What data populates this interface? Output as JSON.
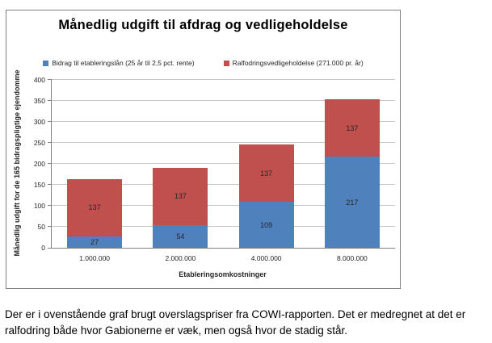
{
  "chart_data": {
    "type": "bar",
    "stacked": true,
    "title": "Månedlig udgift til afdrag og vedligeholdelse",
    "categories": [
      "1.000.000",
      "2.000.000",
      "4.000.000",
      "8.000.000"
    ],
    "series": [
      {
        "name": "Bidrag til etableringslån (25 år til 2,5 pct. rente)",
        "color": "#4F81BD",
        "values": [
          27,
          54,
          109,
          217
        ]
      },
      {
        "name": "Ralfodringsvedligeholdelse (271.000 pr. år)",
        "color": "#C0504D",
        "values": [
          137,
          137,
          137,
          137
        ]
      }
    ],
    "xlabel": "Etableringsomkostninger",
    "ylabel": "Månedlig udgift for de 165 bidragspligtige ejendomme",
    "ylim": [
      0,
      400
    ],
    "yticks": [
      0,
      50,
      100,
      150,
      200,
      250,
      300,
      350,
      400
    ],
    "grid": true,
    "legend_position": "top",
    "data_labels": true
  },
  "caption": {
    "line1": "Der er i ovenstående graf brugt overslagspriser fra COWI-rapporten. Det er medregnet at det er",
    "line2": "ralfodring både hvor Gabionerne er væk, men også hvor de stadig står."
  }
}
